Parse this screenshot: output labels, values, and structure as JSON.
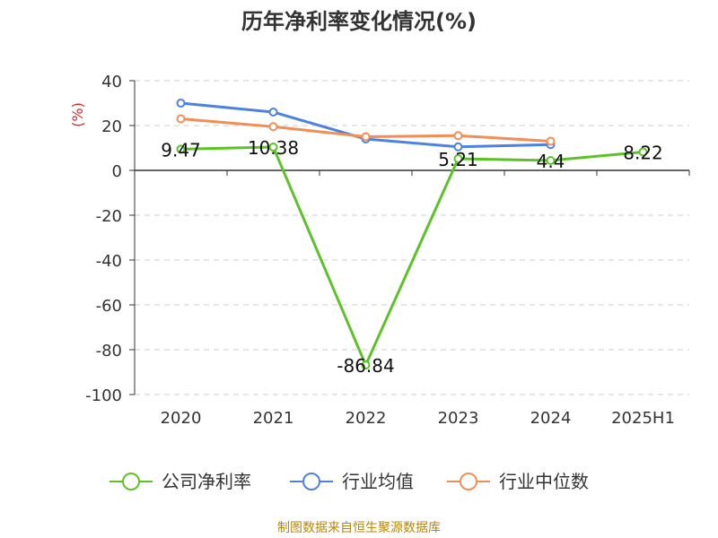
{
  "title": "历年净利率变化情况(%)",
  "source": "制图数据来自恒生聚源数据库",
  "chart_data": {
    "type": "line",
    "title": "历年净利率变化情况(%)",
    "ylabel": "(%)",
    "xlabel": "",
    "ylim": [
      -100,
      40
    ],
    "yticks": [
      40,
      20,
      0,
      -20,
      -40,
      -60,
      -80,
      -100
    ],
    "categories": [
      "2020",
      "2021",
      "2022",
      "2023",
      "2024",
      "2025H1"
    ],
    "grid": true,
    "legend_position": "bottom",
    "series": [
      {
        "name": "公司净利率",
        "color": "#5dc228",
        "values": [
          9.47,
          10.38,
          -86.84,
          5.21,
          4.4,
          8.22
        ],
        "labels": [
          "9.47",
          "10.38",
          "-86.84",
          "5.21",
          "4.4",
          "8.22"
        ]
      },
      {
        "name": "行业均值",
        "color": "#4d83e0",
        "values": [
          30,
          26,
          14,
          10.5,
          11.5,
          null
        ]
      },
      {
        "name": "行业中位数",
        "color": "#f28e55",
        "values": [
          23,
          19.5,
          15,
          15.5,
          13,
          null
        ]
      }
    ]
  }
}
